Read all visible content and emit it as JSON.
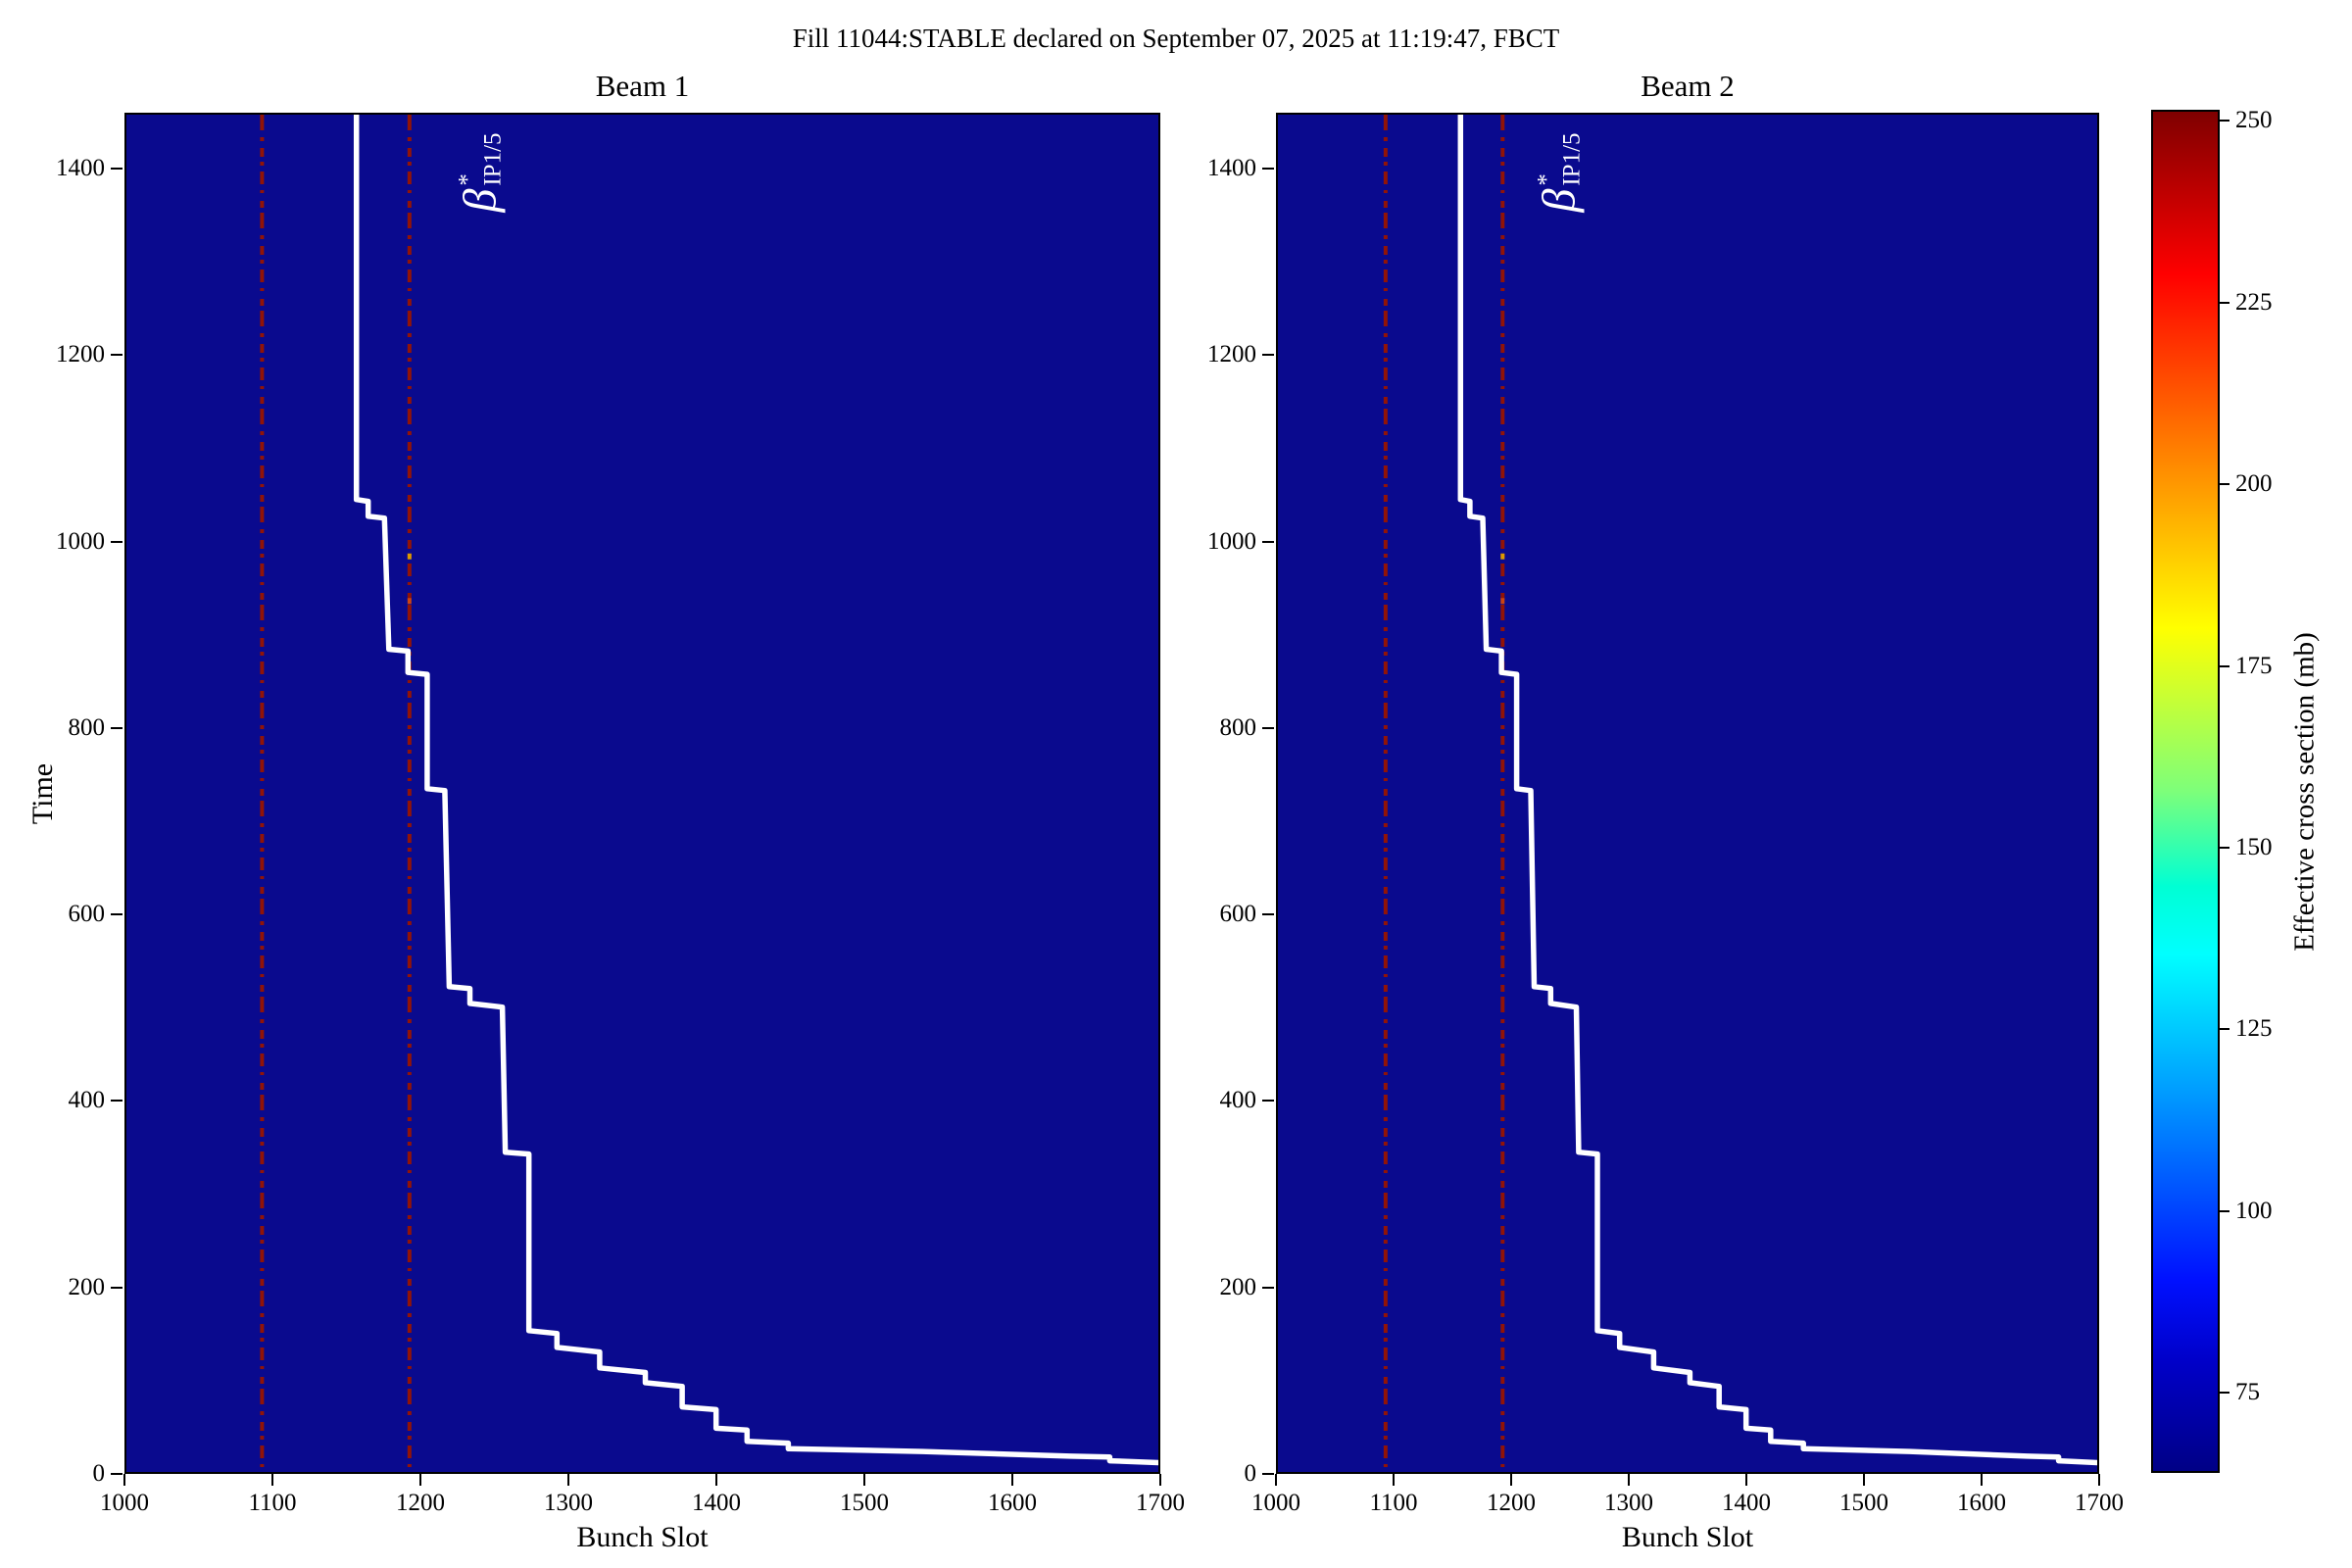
{
  "suptitle": "Fill 11044:STABLE declared on September 07, 2025 at 11:19:47, FBCT",
  "panels": [
    {
      "title": "Beam 1"
    },
    {
      "title": "Beam 2"
    }
  ],
  "axes": {
    "x_label": "Bunch Slot",
    "y_label": "Time",
    "x_ticks": [
      1000,
      1100,
      1200,
      1300,
      1400,
      1500,
      1600,
      1700
    ],
    "y_ticks": [
      0,
      200,
      400,
      600,
      800,
      1000,
      1200,
      1400
    ],
    "xlim": [
      1000,
      1700
    ],
    "ylim": [
      0,
      1460
    ]
  },
  "annotation": {
    "beta": "β",
    "sup": "*",
    "sub": "IP1/5",
    "slot": 1239,
    "time": 1398
  },
  "colorbar": {
    "label": "Effective cross section (mb)",
    "ticks": [
      75,
      100,
      125,
      150,
      175,
      200,
      225,
      250
    ],
    "vmin": 64,
    "vmax": 251.5,
    "colormap": "jet"
  },
  "colors": {
    "figure_background": "#ffffff",
    "heatmap_background": "#0a0a8e",
    "vline_red": "#911407",
    "curve_white": "#ffffff",
    "spine_black": "#000000",
    "jet_stops": [
      "#7f0000",
      "#ff0000",
      "#ff8a00",
      "#ffff00",
      "#7dff7a",
      "#00ffd4",
      "#00ffff",
      "#009dff",
      "#0010ff",
      "#0000c8",
      "#000086"
    ]
  },
  "chart_data": {
    "type": "heatmap",
    "title": "Fill 11044:STABLE declared on September 07, 2025 at 11:19:47, FBCT",
    "panel_titles": [
      "Beam 1",
      "Beam 2"
    ],
    "xlabel": "Bunch Slot",
    "ylabel": "Time",
    "x_range": [
      1000,
      1700
    ],
    "y_range": [
      0,
      1460
    ],
    "x_ticks": [
      1000,
      1100,
      1200,
      1300,
      1400,
      1500,
      1600,
      1700
    ],
    "y_ticks": [
      0,
      200,
      400,
      600,
      800,
      1000,
      1200,
      1400
    ],
    "colorbar_label": "Effective cross section (mb)",
    "colorbar_ticks": [
      75,
      100,
      125,
      150,
      175,
      200,
      225,
      250
    ],
    "background_value_mb": 65,
    "high_xsec_bunch_slots": [
      1092,
      1192
    ],
    "accent_pixels": [
      {
        "slot": 1192,
        "time": 988,
        "color": "#dd9900"
      },
      {
        "slot": 1192,
        "time": 940,
        "color": "#cc4411"
      }
    ],
    "white_curve_step_points": [
      [
        1156,
        1460
      ],
      [
        1156,
        1046
      ],
      [
        1164,
        1044
      ],
      [
        1164,
        1028
      ],
      [
        1175,
        1026
      ],
      [
        1178,
        885
      ],
      [
        1191,
        883
      ],
      [
        1191,
        860
      ],
      [
        1204,
        858
      ],
      [
        1204,
        735
      ],
      [
        1216,
        733
      ],
      [
        1219,
        522
      ],
      [
        1233,
        520
      ],
      [
        1233,
        504
      ],
      [
        1255,
        500
      ],
      [
        1257,
        344
      ],
      [
        1273,
        342
      ],
      [
        1273,
        152
      ],
      [
        1292,
        149
      ],
      [
        1292,
        134
      ],
      [
        1321,
        129
      ],
      [
        1321,
        112
      ],
      [
        1352,
        107
      ],
      [
        1352,
        96
      ],
      [
        1377,
        92
      ],
      [
        1377,
        70
      ],
      [
        1400,
        67
      ],
      [
        1400,
        47
      ],
      [
        1421,
        45
      ],
      [
        1421,
        33
      ],
      [
        1449,
        31
      ],
      [
        1449,
        25
      ],
      [
        1540,
        22
      ],
      [
        1640,
        17
      ],
      [
        1667,
        16
      ],
      [
        1667,
        12
      ],
      [
        1700,
        10
      ]
    ],
    "note": "Both beam panels display the same step boundary: uniform low effective cross section (~65 mb, dark navy) everywhere, with high-value red dash-dot columns at bunch slots 1092 and 1192."
  }
}
